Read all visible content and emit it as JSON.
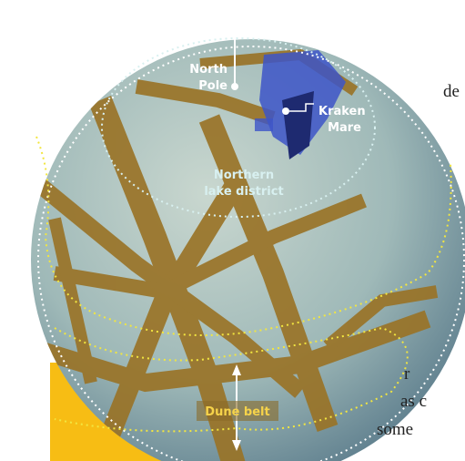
{
  "labels": {
    "north_pole": [
      "North",
      "Pole"
    ],
    "kraken_mare": [
      "Kraken",
      "Mare"
    ],
    "northern_lake_district": [
      "Northern",
      "lake district"
    ],
    "dune_belt": "Dune belt"
  },
  "body_text": [
    "de",
    "r",
    "as c",
    "some"
  ]
}
